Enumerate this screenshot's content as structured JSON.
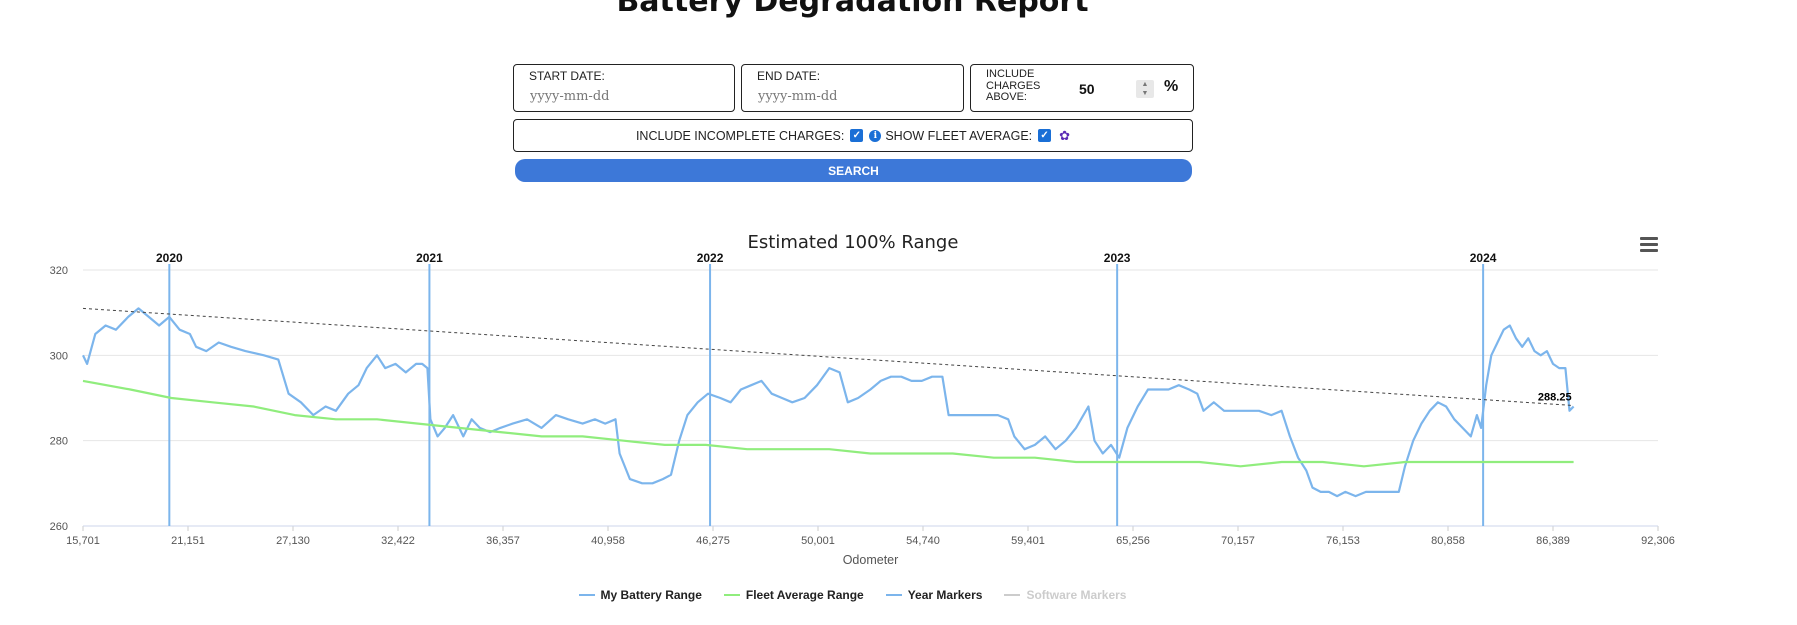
{
  "page": {
    "title": "Battery Degradation Report"
  },
  "filters": {
    "start_date": {
      "label": "START DATE:",
      "placeholder": "yyyy-mm-dd"
    },
    "end_date": {
      "label": "END DATE:",
      "placeholder": "yyyy-mm-dd"
    },
    "charges_above": {
      "label": "INCLUDE CHARGES ABOVE:",
      "value": "50",
      "unit": "%"
    },
    "include_incomplete": {
      "label": "INCLUDE INCOMPLETE CHARGES:",
      "checked": true
    },
    "show_fleet_average": {
      "label": "SHOW FLEET AVERAGE:",
      "checked": true
    },
    "search_label": "SEARCH"
  },
  "icons": {
    "info": "info-icon",
    "gear": "gear-icon",
    "menu": "hamburger-menu-icon",
    "check": "checkmark-icon"
  },
  "colors": {
    "accent": "#3d78d8",
    "my_battery": "#7cb5ec",
    "fleet": "#90ed7d",
    "year_marker": "#7cb5ec",
    "trend": "#444444"
  },
  "chart_data": {
    "type": "line",
    "title": "Estimated 100% Range",
    "xlabel": "Odometer",
    "ylabel": "",
    "ylim": [
      260,
      320
    ],
    "xlim": [
      15701,
      92306
    ],
    "y_ticks": [
      "260",
      "280",
      "300",
      "320"
    ],
    "x_tick_labels": [
      "15,701",
      "21,151",
      "27,130",
      "32,422",
      "36,357",
      "40,958",
      "46,275",
      "50,001",
      "54,740",
      "59,401",
      "65,256",
      "70,157",
      "76,153",
      "80,858",
      "86,389",
      "92,306"
    ],
    "grid": true,
    "legend_position": "bottom-center",
    "series": [
      {
        "name": "My Battery Range",
        "color": "#7cb5ec",
        "points": [
          [
            15701,
            300
          ],
          [
            15900,
            298
          ],
          [
            16300,
            305
          ],
          [
            16800,
            307
          ],
          [
            17300,
            306
          ],
          [
            17900,
            309
          ],
          [
            18400,
            311
          ],
          [
            18900,
            309
          ],
          [
            19400,
            307
          ],
          [
            19900,
            309
          ],
          [
            20400,
            306
          ],
          [
            20900,
            305
          ],
          [
            21200,
            302
          ],
          [
            21700,
            301
          ],
          [
            22300,
            303
          ],
          [
            22900,
            302
          ],
          [
            23600,
            301
          ],
          [
            24500,
            300
          ],
          [
            25200,
            299
          ],
          [
            25700,
            291
          ],
          [
            26300,
            289
          ],
          [
            26900,
            286
          ],
          [
            27500,
            288
          ],
          [
            28000,
            287
          ],
          [
            28600,
            291
          ],
          [
            29100,
            293
          ],
          [
            29500,
            297
          ],
          [
            30000,
            300
          ],
          [
            30400,
            297
          ],
          [
            30900,
            298
          ],
          [
            31400,
            296
          ],
          [
            31900,
            298
          ],
          [
            32200,
            298
          ],
          [
            32450,
            297
          ],
          [
            32600,
            285
          ],
          [
            32950,
            281
          ],
          [
            33300,
            283
          ],
          [
            33700,
            286
          ],
          [
            34200,
            281
          ],
          [
            34600,
            285
          ],
          [
            35000,
            283
          ],
          [
            35500,
            282
          ],
          [
            36000,
            283
          ],
          [
            36600,
            284
          ],
          [
            37300,
            285
          ],
          [
            38000,
            283
          ],
          [
            38700,
            286
          ],
          [
            39300,
            285
          ],
          [
            40000,
            284
          ],
          [
            40600,
            285
          ],
          [
            41100,
            284
          ],
          [
            41600,
            285
          ],
          [
            41800,
            277
          ],
          [
            42300,
            271
          ],
          [
            42900,
            270
          ],
          [
            43400,
            270
          ],
          [
            43900,
            271
          ],
          [
            44300,
            272
          ],
          [
            44700,
            280
          ],
          [
            45100,
            286
          ],
          [
            45600,
            289
          ],
          [
            46100,
            291
          ],
          [
            46700,
            290
          ],
          [
            47200,
            289
          ],
          [
            47700,
            292
          ],
          [
            48200,
            293
          ],
          [
            48700,
            294
          ],
          [
            49200,
            291
          ],
          [
            49700,
            290
          ],
          [
            50200,
            289
          ],
          [
            50800,
            290
          ],
          [
            51400,
            293
          ],
          [
            52000,
            297
          ],
          [
            52500,
            296
          ],
          [
            52900,
            289
          ],
          [
            53400,
            290
          ],
          [
            54000,
            292
          ],
          [
            54500,
            294
          ],
          [
            55000,
            295
          ],
          [
            55500,
            295
          ],
          [
            56000,
            294
          ],
          [
            56500,
            294
          ],
          [
            57000,
            295
          ],
          [
            57500,
            295
          ],
          [
            57800,
            286
          ],
          [
            58400,
            286
          ],
          [
            59000,
            286
          ],
          [
            59600,
            286
          ],
          [
            60200,
            286
          ],
          [
            60700,
            285
          ],
          [
            61000,
            281
          ],
          [
            61500,
            278
          ],
          [
            62000,
            279
          ],
          [
            62500,
            281
          ],
          [
            63000,
            278
          ],
          [
            63500,
            280
          ],
          [
            64000,
            283
          ],
          [
            64600,
            288
          ],
          [
            64900,
            280
          ],
          [
            65300,
            277
          ],
          [
            65700,
            279
          ],
          [
            66100,
            276
          ],
          [
            66500,
            283
          ],
          [
            67000,
            288
          ],
          [
            67500,
            292
          ],
          [
            68000,
            292
          ],
          [
            68500,
            292
          ],
          [
            69000,
            293
          ],
          [
            69500,
            292
          ],
          [
            69900,
            291
          ],
          [
            70200,
            287
          ],
          [
            70700,
            289
          ],
          [
            71200,
            287
          ],
          [
            71700,
            287
          ],
          [
            72300,
            287
          ],
          [
            72900,
            287
          ],
          [
            73500,
            286
          ],
          [
            74000,
            287
          ],
          [
            74400,
            281
          ],
          [
            74800,
            276
          ],
          [
            75200,
            273
          ],
          [
            75500,
            269
          ],
          [
            75900,
            268
          ],
          [
            76300,
            268
          ],
          [
            76700,
            267
          ],
          [
            77100,
            268
          ],
          [
            77600,
            267
          ],
          [
            78100,
            268
          ],
          [
            78700,
            268
          ],
          [
            79300,
            268
          ],
          [
            79700,
            268
          ],
          [
            80000,
            274
          ],
          [
            80400,
            280
          ],
          [
            80800,
            284
          ],
          [
            81200,
            287
          ],
          [
            81600,
            289
          ],
          [
            82000,
            288
          ],
          [
            82400,
            285
          ],
          [
            82800,
            283
          ],
          [
            83200,
            281
          ],
          [
            83500,
            286
          ],
          [
            83700,
            283
          ],
          [
            83950,
            293
          ],
          [
            84200,
            300
          ],
          [
            84500,
            303
          ],
          [
            84800,
            306
          ],
          [
            85100,
            307
          ],
          [
            85400,
            304
          ],
          [
            85700,
            302
          ],
          [
            86000,
            304
          ],
          [
            86300,
            301
          ],
          [
            86600,
            300
          ],
          [
            86900,
            301
          ],
          [
            87200,
            298
          ],
          [
            87500,
            297
          ],
          [
            87800,
            297
          ],
          [
            88000,
            287
          ],
          [
            88200,
            288
          ]
        ]
      },
      {
        "name": "Fleet Average Range",
        "color": "#90ed7d",
        "points": [
          [
            15701,
            294
          ],
          [
            18000,
            292
          ],
          [
            20000,
            290
          ],
          [
            22000,
            289
          ],
          [
            24000,
            288
          ],
          [
            26000,
            286
          ],
          [
            28000,
            285
          ],
          [
            30000,
            285
          ],
          [
            32000,
            284
          ],
          [
            34000,
            283
          ],
          [
            36000,
            282
          ],
          [
            38000,
            281
          ],
          [
            40000,
            281
          ],
          [
            42000,
            280
          ],
          [
            44000,
            279
          ],
          [
            46000,
            279
          ],
          [
            48000,
            278
          ],
          [
            50000,
            278
          ],
          [
            52000,
            278
          ],
          [
            54000,
            277
          ],
          [
            56000,
            277
          ],
          [
            58000,
            277
          ],
          [
            60000,
            276
          ],
          [
            62000,
            276
          ],
          [
            64000,
            275
          ],
          [
            66000,
            275
          ],
          [
            68000,
            275
          ],
          [
            70000,
            275
          ],
          [
            72000,
            274
          ],
          [
            74000,
            275
          ],
          [
            76000,
            275
          ],
          [
            78000,
            274
          ],
          [
            80000,
            275
          ],
          [
            82000,
            275
          ],
          [
            84000,
            275
          ],
          [
            86000,
            275
          ],
          [
            88200,
            275
          ]
        ]
      },
      {
        "name": "Trend",
        "color": "#444444",
        "dashed": true,
        "points": [
          [
            15701,
            311
          ],
          [
            88200,
            288.25
          ]
        ],
        "end_label": "288.25"
      }
    ],
    "year_markers": [
      {
        "label": "2020",
        "x": 19900
      },
      {
        "label": "2021",
        "x": 32550
      },
      {
        "label": "2022",
        "x": 46200
      },
      {
        "label": "2023",
        "x": 66000
      },
      {
        "label": "2024",
        "x": 83800
      }
    ],
    "legend": [
      {
        "label": "My Battery Range",
        "color": "#7cb5ec",
        "enabled": true
      },
      {
        "label": "Fleet Average Range",
        "color": "#90ed7d",
        "enabled": true
      },
      {
        "label": "Year Markers",
        "color": "#7cb5ec",
        "enabled": true
      },
      {
        "label": "Software Markers",
        "color": "#cccccc",
        "enabled": false
      }
    ]
  }
}
